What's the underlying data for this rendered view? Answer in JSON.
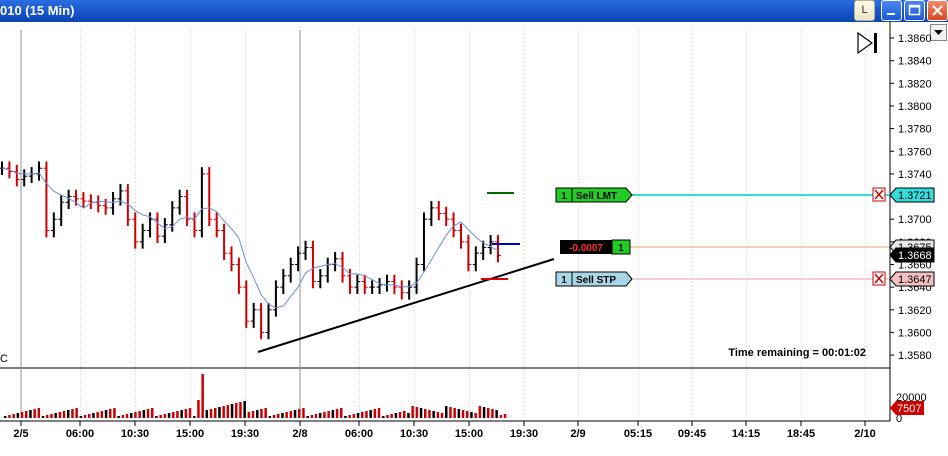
{
  "window": {
    "title": "010 (15 Min)",
    "btn_l": "L"
  },
  "price_axis": {
    "labels": [
      "1.3860",
      "1.3840",
      "1.3820",
      "1.3800",
      "1.3780",
      "1.3760",
      "1.3740",
      "1.3720",
      "1.3700",
      "1.3680",
      "1.3660",
      "1.3640",
      "1.3620",
      "1.3600",
      "1.3580"
    ]
  },
  "time_axis": {
    "labels": [
      "2/5",
      "06:00",
      "10:30",
      "15:00",
      "19:30",
      "2/8",
      "06:00",
      "10:30",
      "15:00",
      "19:30",
      "2/9",
      "05:15",
      "09:45",
      "14:15",
      "18:45",
      "2/10"
    ]
  },
  "volume_axis": {
    "labels": [
      "20000",
      "0"
    ],
    "last_volume": "7507"
  },
  "orders": {
    "sell_lmt": {
      "qty": "1",
      "label": "Sell LMT",
      "price": "1.3721"
    },
    "sell_stp": {
      "qty": "1",
      "label": "Sell STP",
      "price": "1.3647"
    },
    "position": {
      "pnl": "-0.0007",
      "qty": "1",
      "price": "1.3675"
    },
    "last_price": "1.3668"
  },
  "left_label": "C",
  "time_remaining": "Time remaining = 00:01:02",
  "colors": {
    "sell_lmt_fill": "#22cc22",
    "sell_stp_fill": "#a8d8e8",
    "sell_lmt_line": "#33dddd",
    "sell_stp_line": "#f0a0a0",
    "position_line": "#e8a070",
    "bar_up": "#000000",
    "bar_down": "#cc0000",
    "ma_line": "#6b8ed8"
  }
}
